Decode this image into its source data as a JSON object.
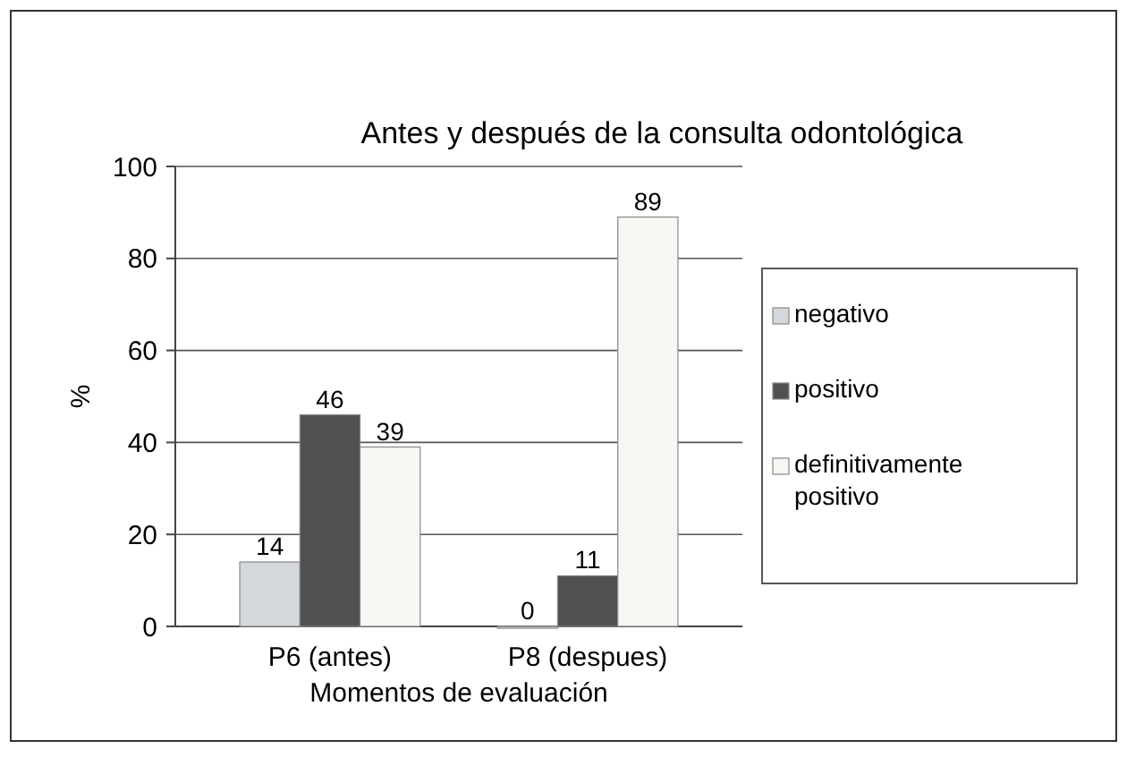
{
  "chart_data": {
    "type": "bar",
    "title": "Antes y después de la consulta odontológica",
    "xlabel": "Momentos de evaluación",
    "ylabel": "%",
    "categories": [
      "P6 (antes)",
      "P8 (despues)"
    ],
    "series": [
      {
        "name": "negativo",
        "color": "#d4d8dc",
        "values": [
          14,
          0
        ]
      },
      {
        "name": "positivo",
        "color": "#505050",
        "values": [
          46,
          11
        ]
      },
      {
        "name": "definitivamente positivo",
        "color": "#f6f6f2",
        "values": [
          39,
          89
        ]
      }
    ],
    "ylim": [
      0,
      100
    ],
    "yticks": [
      0,
      20,
      40,
      60,
      80,
      100
    ],
    "grid": "y",
    "legend": "right",
    "data_labels": true
  }
}
